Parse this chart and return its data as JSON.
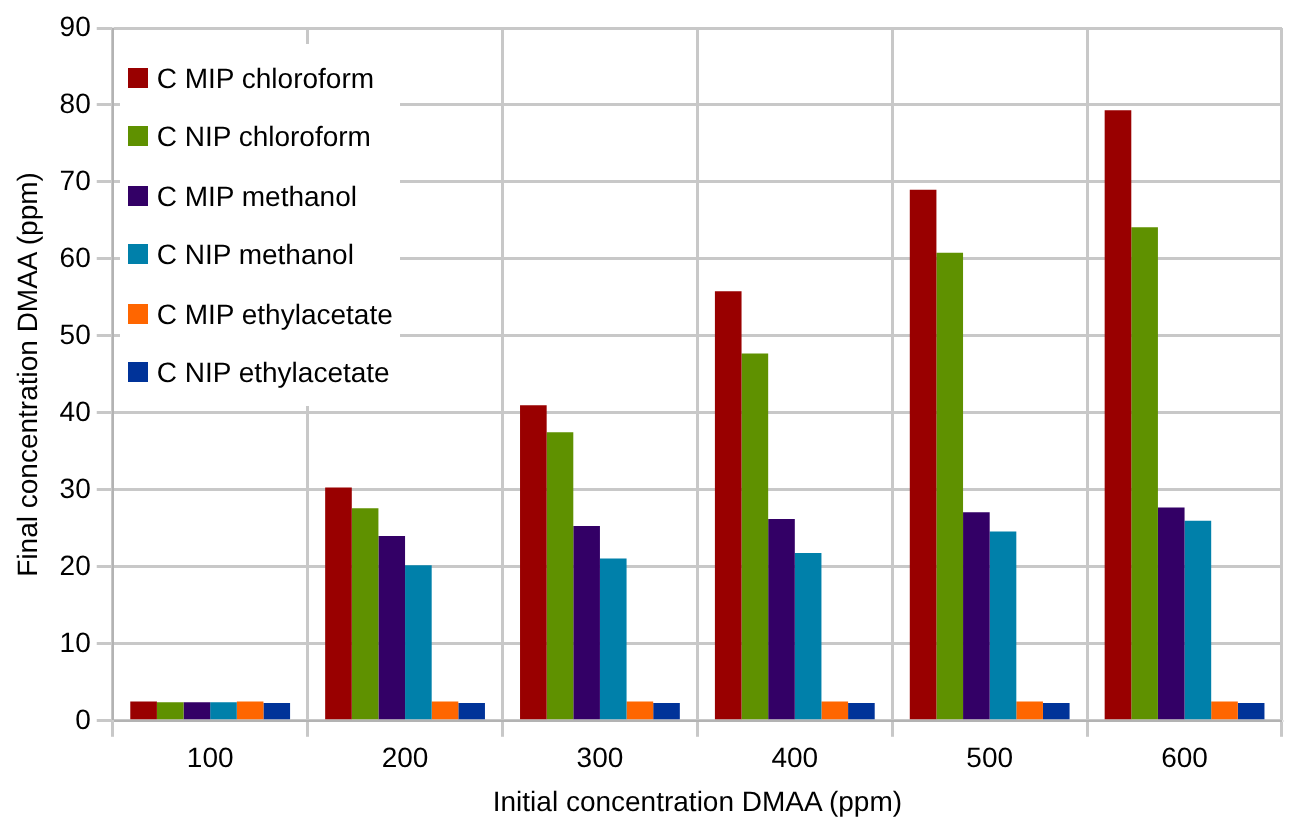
{
  "chart_data": {
    "type": "bar",
    "xlabel": "Initial concentration DMAA (ppm)",
    "ylabel": "Final concentration DMAA (ppm)",
    "categories": [
      "100",
      "200",
      "300",
      "400",
      "500",
      "600"
    ],
    "series": [
      {
        "name": "C MIP chloroform",
        "color": "#990000",
        "values": [
          2.5,
          30.3,
          41,
          55.8,
          69,
          79.3
        ]
      },
      {
        "name": "C NIP chloroform",
        "color": "#5f9100",
        "values": [
          2.4,
          27.6,
          37.5,
          47.7,
          60.8,
          64.1
        ]
      },
      {
        "name": "C MIP methanol",
        "color": "#330066",
        "values": [
          2.4,
          24,
          25.3,
          26.2,
          27.1,
          27.7
        ]
      },
      {
        "name": "C NIP methanol",
        "color": "#0080aa",
        "values": [
          2.4,
          20.2,
          21.1,
          21.8,
          24.6,
          26
        ]
      },
      {
        "name": "C MIP ethylacetate",
        "color": "#ff6600",
        "values": [
          2.5,
          2.5,
          2.5,
          2.5,
          2.5,
          2.5
        ]
      },
      {
        "name": "C NIP ethylacetate",
        "color": "#003399",
        "values": [
          2.3,
          2.3,
          2.3,
          2.3,
          2.3,
          2.3
        ]
      }
    ],
    "ylim": [
      0,
      90
    ],
    "yticks": [
      0,
      10,
      20,
      30,
      40,
      50,
      60,
      70,
      80,
      90
    ],
    "grid": true,
    "legend": "top left"
  }
}
